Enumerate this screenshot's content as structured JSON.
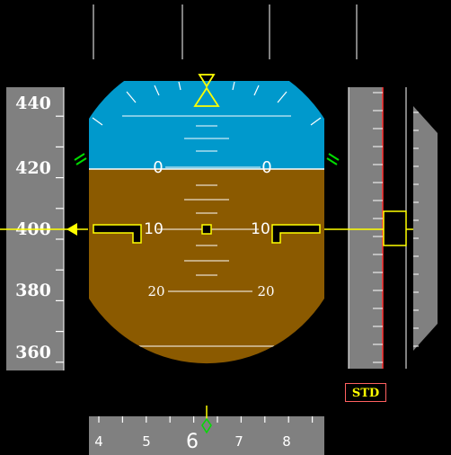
{
  "speed_tape": {
    "labels": [
      "440",
      "420",
      "400",
      "380",
      "360"
    ],
    "current_value": 400
  },
  "attitude": {
    "pitch_labels": {
      "p0_left": "0",
      "p0_right": "0",
      "p10_left": "10",
      "p10_right": "10",
      "p20_left": "20",
      "p20_right": "20"
    },
    "pitch_deg": 0,
    "roll_deg": 0
  },
  "heading_tape": {
    "labels": [
      "4",
      "5",
      "6",
      "7",
      "8"
    ],
    "current_value": 6.3
  },
  "baro_setting": "STD",
  "colors": {
    "sky": "#0099cc",
    "ground": "#8b5a00",
    "tape": "#808080",
    "symbol_yellow": "#ffff00",
    "marker_green": "#00dd00",
    "std_border": "#ff6060"
  }
}
